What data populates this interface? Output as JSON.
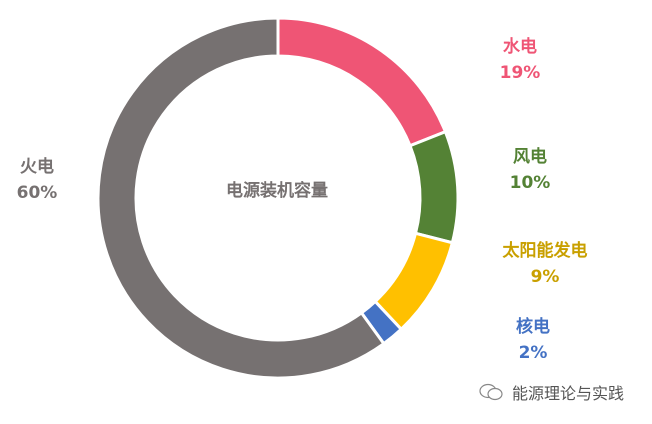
{
  "chart_data": {
    "type": "pie",
    "variant": "donut",
    "center_label": "电源装机容量",
    "start": "top, clockwise",
    "slices": [
      {
        "label": "水电",
        "value": 19,
        "value_label": "19%",
        "color": "#EF5575"
      },
      {
        "label": "风电",
        "value": 10,
        "value_label": "10%",
        "color": "#548235"
      },
      {
        "label": "太阳能发电",
        "value": 9,
        "value_label": "9%",
        "color": "#FFC000"
      },
      {
        "label": "核电",
        "value": 2,
        "value_label": "2%",
        "color": "#4472C4"
      },
      {
        "label": "火电",
        "value": 60,
        "value_label": "60%",
        "color": "#767171"
      }
    ]
  },
  "watermark": {
    "text": "能源理论与实践",
    "icon": "wechat-icon"
  }
}
